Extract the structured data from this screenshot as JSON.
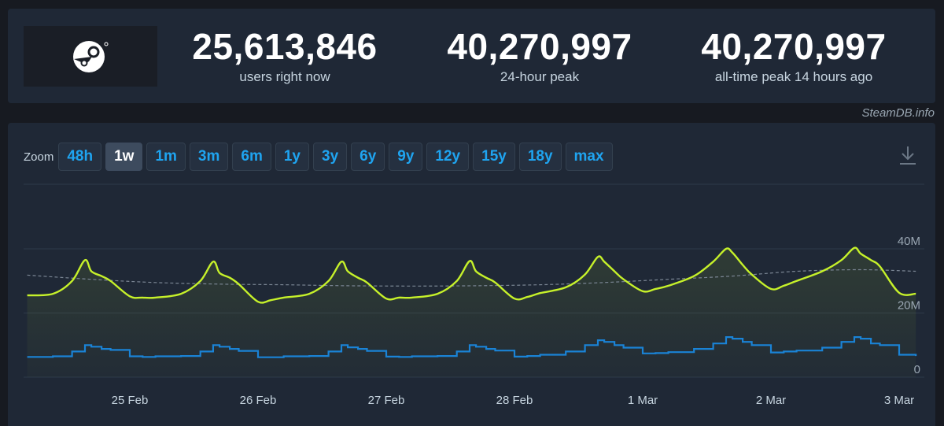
{
  "stats": [
    {
      "value": "25,613,846",
      "label": "users right now"
    },
    {
      "value": "40,270,997",
      "label": "24-hour peak"
    },
    {
      "value": "40,270,997",
      "label": "all-time peak 14 hours ago"
    }
  ],
  "credit": "SteamDB.info",
  "zoom": {
    "label": "Zoom",
    "options": [
      "48h",
      "1w",
      "1m",
      "3m",
      "6m",
      "1y",
      "3y",
      "6y",
      "9y",
      "12y",
      "15y",
      "18y",
      "max"
    ],
    "selected": "1w"
  },
  "colors": {
    "users_line": "#c6f12a",
    "ingame_line": "#1a83d6",
    "trend_line": "#7a8593",
    "accent": "#1fa4f0"
  },
  "chart_data": {
    "type": "line",
    "x_tick_labels": [
      "25 Feb",
      "26 Feb",
      "27 Feb",
      "28 Feb",
      "1 Mar",
      "2 Mar",
      "3 Mar"
    ],
    "y_tick_labels": [
      "0",
      "20M",
      "40M"
    ],
    "ylim": [
      0,
      40000000
    ],
    "grid": true,
    "series": [
      {
        "x": [
          0.0,
          0.2,
          0.35,
          0.45,
          0.5,
          0.58,
          0.65,
          0.8,
          0.9,
          1.0,
          1.2,
          1.35,
          1.45,
          1.5,
          1.58,
          1.65,
          1.8,
          1.9,
          2.0,
          2.2,
          2.35,
          2.45,
          2.5,
          2.58,
          2.65,
          2.8,
          2.9,
          3.0,
          3.2,
          3.35,
          3.45,
          3.5,
          3.58,
          3.65,
          3.8,
          3.9,
          4.0,
          4.2,
          4.35,
          4.45,
          4.5,
          4.58,
          4.65,
          4.8,
          4.9,
          5.0,
          5.2,
          5.35,
          5.45,
          5.5,
          5.58,
          5.65,
          5.8,
          5.9,
          6.0,
          6.2,
          6.35,
          6.45,
          6.5,
          6.58,
          6.65,
          6.8,
          6.93
        ],
        "values": [
          25.5,
          26,
          30,
          36.5,
          33,
          31.5,
          30,
          25.2,
          24.8,
          24.8,
          26,
          30,
          36,
          32.5,
          31,
          29,
          23.5,
          24,
          24.8,
          26,
          30,
          36,
          33,
          31,
          29.5,
          24.5,
          24.8,
          24.8,
          26,
          30,
          36.2,
          33,
          31,
          29.5,
          24.5,
          25,
          26.2,
          28,
          32,
          37.5,
          36,
          33,
          30.5,
          26.8,
          27.5,
          28.5,
          31.5,
          36,
          40,
          38.8,
          35,
          32,
          27.5,
          28.5,
          30,
          33,
          36.5,
          40.3,
          38.5,
          36.5,
          34.5,
          26.3,
          26.0
        ]
      },
      {
        "x": [
          0.0,
          0.2,
          0.35,
          0.45,
          0.5,
          0.58,
          0.65,
          0.8,
          0.9,
          1.0,
          1.2,
          1.35,
          1.45,
          1.5,
          1.58,
          1.65,
          1.8,
          1.9,
          2.0,
          2.2,
          2.35,
          2.45,
          2.5,
          2.58,
          2.65,
          2.8,
          2.9,
          3.0,
          3.2,
          3.35,
          3.45,
          3.5,
          3.58,
          3.65,
          3.8,
          3.9,
          4.0,
          4.2,
          4.35,
          4.45,
          4.5,
          4.58,
          4.65,
          4.8,
          4.9,
          5.0,
          5.2,
          5.35,
          5.45,
          5.5,
          5.58,
          5.65,
          5.8,
          5.9,
          6.0,
          6.2,
          6.35,
          6.45,
          6.5,
          6.58,
          6.65,
          6.8,
          6.93
        ],
        "values": [
          6.3,
          6.5,
          8,
          10,
          9.5,
          8.8,
          8.5,
          6.5,
          6.3,
          6.5,
          6.6,
          8,
          10,
          9.5,
          8.8,
          8.2,
          6.2,
          6.2,
          6.5,
          6.6,
          8,
          10,
          9.3,
          8.8,
          8.2,
          6.4,
          6.3,
          6.5,
          6.6,
          8,
          10,
          9.5,
          8.8,
          8.3,
          6.4,
          6.6,
          7,
          8,
          10,
          11.5,
          11,
          10,
          9.2,
          7.4,
          7.5,
          7.8,
          8.8,
          10.5,
          12.5,
          12,
          11,
          10,
          7.7,
          8,
          8.3,
          9.2,
          11,
          12.5,
          12,
          10.5,
          10,
          7,
          6.6
        ]
      },
      {
        "x": [
          0.0,
          0.5,
          1.0,
          1.5,
          2.0,
          2.5,
          3.0,
          3.5,
          4.0,
          4.5,
          5.0,
          5.5,
          6.0,
          6.5,
          6.93
        ],
        "values": [
          31.8,
          30.5,
          29.5,
          29,
          28.8,
          28.5,
          28.4,
          28.5,
          28.8,
          29.5,
          30.5,
          31.5,
          33,
          33.5,
          33
        ]
      }
    ]
  }
}
